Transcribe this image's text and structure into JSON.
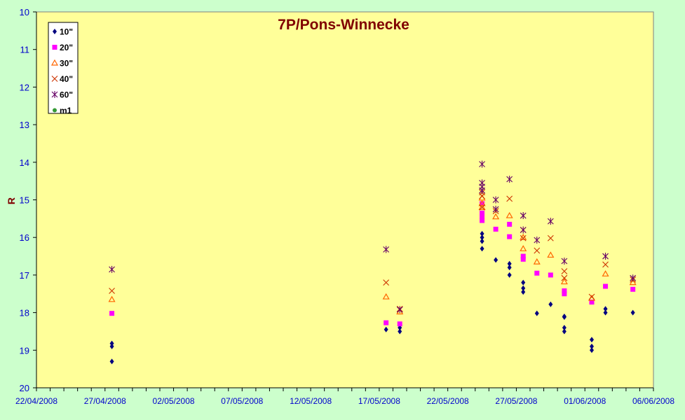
{
  "chart_data": {
    "type": "scatter",
    "title": "7P/Pons-Winnecke",
    "ylabel": "R",
    "xlabel": "",
    "ylim": [
      10,
      20
    ],
    "y_inverted": true,
    "y_ticks": [
      10,
      11,
      12,
      13,
      14,
      15,
      16,
      17,
      18,
      19,
      20
    ],
    "xlim": [
      "2008-04-22",
      "2008-06-06"
    ],
    "x_ticks": [
      "22/04/2008",
      "27/04/2008",
      "02/05/2008",
      "07/05/2008",
      "12/05/2008",
      "17/05/2008",
      "22/05/2008",
      "27/05/2008",
      "01/06/2008",
      "06/06/2008"
    ],
    "grid": false,
    "legend_position": "top-left",
    "colors": {
      "plot_background": "#ffff99",
      "page_background": "#ccffcc",
      "title": "#800000",
      "axis_labels": "#0000cc"
    },
    "series": [
      {
        "name": "10\"",
        "marker": "diamond",
        "color": "#000080",
        "points": [
          {
            "x": "2008-04-27",
            "y": 18.82
          },
          {
            "x": "2008-04-27",
            "y": 18.9
          },
          {
            "x": "2008-04-27",
            "y": 19.3
          },
          {
            "x": "2008-05-17",
            "y": 18.45
          },
          {
            "x": "2008-05-18",
            "y": 18.4
          },
          {
            "x": "2008-05-18",
            "y": 18.5
          },
          {
            "x": "2008-05-24",
            "y": 15.9
          },
          {
            "x": "2008-05-24",
            "y": 16.0
          },
          {
            "x": "2008-05-24",
            "y": 16.1
          },
          {
            "x": "2008-05-24",
            "y": 16.3
          },
          {
            "x": "2008-05-25",
            "y": 16.6
          },
          {
            "x": "2008-05-26",
            "y": 16.7
          },
          {
            "x": "2008-05-26",
            "y": 16.8
          },
          {
            "x": "2008-05-26",
            "y": 17.0
          },
          {
            "x": "2008-05-27",
            "y": 17.2
          },
          {
            "x": "2008-05-27",
            "y": 17.35
          },
          {
            "x": "2008-05-27",
            "y": 17.45
          },
          {
            "x": "2008-05-28",
            "y": 18.02
          },
          {
            "x": "2008-05-29",
            "y": 17.78
          },
          {
            "x": "2008-05-30",
            "y": 18.1
          },
          {
            "x": "2008-05-30",
            "y": 18.12
          },
          {
            "x": "2008-05-30",
            "y": 18.4
          },
          {
            "x": "2008-05-30",
            "y": 18.5
          },
          {
            "x": "2008-06-01",
            "y": 18.72
          },
          {
            "x": "2008-06-01",
            "y": 18.9
          },
          {
            "x": "2008-06-01",
            "y": 19.0
          },
          {
            "x": "2008-06-02",
            "y": 17.9
          },
          {
            "x": "2008-06-02",
            "y": 18.0
          },
          {
            "x": "2008-06-04",
            "y": 18.0
          }
        ]
      },
      {
        "name": "20\"",
        "marker": "square",
        "color": "#ff00ff",
        "points": [
          {
            "x": "2008-04-27",
            "y": 18.02
          },
          {
            "x": "2008-05-17",
            "y": 18.27
          },
          {
            "x": "2008-05-18",
            "y": 18.3
          },
          {
            "x": "2008-05-24",
            "y": 15.1
          },
          {
            "x": "2008-05-24",
            "y": 15.35
          },
          {
            "x": "2008-05-24",
            "y": 15.45
          },
          {
            "x": "2008-05-24",
            "y": 15.55
          },
          {
            "x": "2008-05-25",
            "y": 15.78
          },
          {
            "x": "2008-05-26",
            "y": 15.65
          },
          {
            "x": "2008-05-26",
            "y": 15.98
          },
          {
            "x": "2008-05-27",
            "y": 16.5
          },
          {
            "x": "2008-05-27",
            "y": 16.58
          },
          {
            "x": "2008-05-28",
            "y": 16.95
          },
          {
            "x": "2008-05-29",
            "y": 17.0
          },
          {
            "x": "2008-05-30",
            "y": 17.42
          },
          {
            "x": "2008-05-30",
            "y": 17.5
          },
          {
            "x": "2008-06-01",
            "y": 17.72
          },
          {
            "x": "2008-06-02",
            "y": 17.3
          },
          {
            "x": "2008-06-04",
            "y": 17.38
          }
        ]
      },
      {
        "name": "30\"",
        "marker": "triangle",
        "color": "#ff6600",
        "points": [
          {
            "x": "2008-04-27",
            "y": 17.65
          },
          {
            "x": "2008-05-17",
            "y": 17.58
          },
          {
            "x": "2008-05-18",
            "y": 17.98
          },
          {
            "x": "2008-05-24",
            "y": 14.95
          },
          {
            "x": "2008-05-24",
            "y": 15.1
          },
          {
            "x": "2008-05-24",
            "y": 15.2
          },
          {
            "x": "2008-05-25",
            "y": 15.45
          },
          {
            "x": "2008-05-26",
            "y": 15.42
          },
          {
            "x": "2008-05-27",
            "y": 16.0
          },
          {
            "x": "2008-05-27",
            "y": 16.3
          },
          {
            "x": "2008-05-28",
            "y": 16.65
          },
          {
            "x": "2008-05-29",
            "y": 16.47
          },
          {
            "x": "2008-05-30",
            "y": 17.18
          },
          {
            "x": "2008-06-01",
            "y": 17.62
          },
          {
            "x": "2008-06-02",
            "y": 16.97
          },
          {
            "x": "2008-06-04",
            "y": 17.2
          }
        ]
      },
      {
        "name": "40\"",
        "marker": "x",
        "color": "#cc3300",
        "points": [
          {
            "x": "2008-04-27",
            "y": 17.42
          },
          {
            "x": "2008-05-17",
            "y": 17.2
          },
          {
            "x": "2008-05-18",
            "y": 17.9
          },
          {
            "x": "2008-05-24",
            "y": 14.8
          },
          {
            "x": "2008-05-24",
            "y": 14.9
          },
          {
            "x": "2008-05-24",
            "y": 15.2
          },
          {
            "x": "2008-05-25",
            "y": 15.3
          },
          {
            "x": "2008-05-26",
            "y": 14.97
          },
          {
            "x": "2008-05-27",
            "y": 15.8
          },
          {
            "x": "2008-05-27",
            "y": 16.02
          },
          {
            "x": "2008-05-28",
            "y": 16.35
          },
          {
            "x": "2008-05-29",
            "y": 16.02
          },
          {
            "x": "2008-05-30",
            "y": 16.9
          },
          {
            "x": "2008-05-30",
            "y": 17.08
          },
          {
            "x": "2008-06-01",
            "y": 17.58
          },
          {
            "x": "2008-06-02",
            "y": 16.72
          },
          {
            "x": "2008-06-04",
            "y": 17.12
          }
        ]
      },
      {
        "name": "60\"",
        "marker": "star",
        "color": "#660066",
        "points": [
          {
            "x": "2008-04-27",
            "y": 16.85
          },
          {
            "x": "2008-05-17",
            "y": 16.32
          },
          {
            "x": "2008-05-18",
            "y": 17.92
          },
          {
            "x": "2008-05-24",
            "y": 14.05
          },
          {
            "x": "2008-05-24",
            "y": 14.55
          },
          {
            "x": "2008-05-24",
            "y": 14.65
          },
          {
            "x": "2008-05-24",
            "y": 14.75
          },
          {
            "x": "2008-05-25",
            "y": 15.0
          },
          {
            "x": "2008-05-25",
            "y": 15.25
          },
          {
            "x": "2008-05-26",
            "y": 14.45
          },
          {
            "x": "2008-05-27",
            "y": 15.42
          },
          {
            "x": "2008-05-27",
            "y": 15.8
          },
          {
            "x": "2008-05-28",
            "y": 16.07
          },
          {
            "x": "2008-05-29",
            "y": 15.57
          },
          {
            "x": "2008-05-30",
            "y": 16.63
          },
          {
            "x": "2008-06-02",
            "y": 16.5
          },
          {
            "x": "2008-06-04",
            "y": 17.08
          }
        ]
      },
      {
        "name": "m1",
        "marker": "circle",
        "color": "#339933",
        "points": []
      }
    ]
  }
}
